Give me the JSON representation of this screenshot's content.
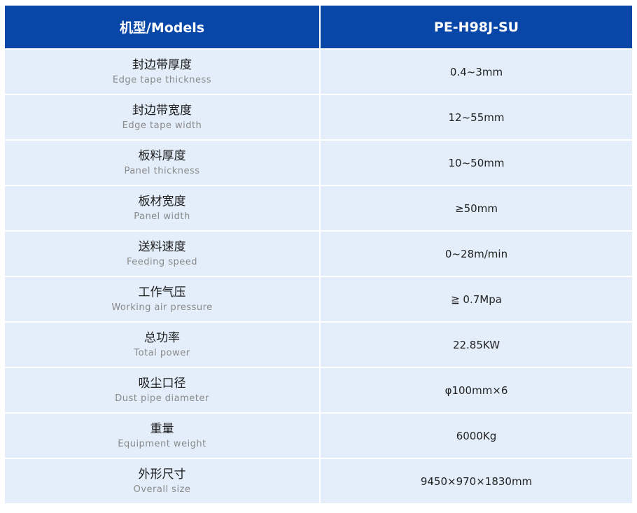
{
  "header": {
    "col1": "机型/Models",
    "col2": "PE-H98J-SU"
  },
  "rows": [
    {
      "zh": "封边带厚度",
      "en": "Edge tape thickness",
      "value": "0.4~3mm"
    },
    {
      "zh": "封边带宽度",
      "en": "Edge tape width",
      "value": "12~55mm"
    },
    {
      "zh": "板料厚度",
      "en": "Panel thickness",
      "value": "10~50mm"
    },
    {
      "zh": "板材宽度",
      "en": "Panel width",
      "value": "≥50mm"
    },
    {
      "zh": "送料速度",
      "en": "Feeding speed",
      "value": "0~28m/min"
    },
    {
      "zh": "工作气压",
      "en": "Working air pressure",
      "value": "≧ 0.7Mpa"
    },
    {
      "zh": "总功率",
      "en": "Total power",
      "value": "22.85KW"
    },
    {
      "zh": "吸尘口径",
      "en": "Dust pipe diameter",
      "value": "φ100mm×6"
    },
    {
      "zh": "重量",
      "en": "Equipment weight",
      "value": "6000Kg"
    },
    {
      "zh": "外形尺寸",
      "en": "Overall size",
      "value": "9450×970×1830mm"
    }
  ],
  "colors": {
    "header": "#0847a8",
    "row": "#e3eefa"
  }
}
